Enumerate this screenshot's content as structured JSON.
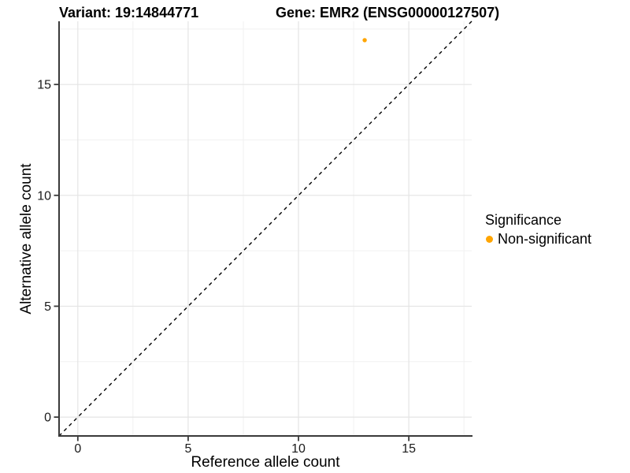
{
  "titles": {
    "variant": "Variant: 19:14844771",
    "gene": "Gene: EMR2 (ENSG00000127507)"
  },
  "chart_data": {
    "type": "scatter",
    "xlabel": "Reference allele count",
    "ylabel": "Alternative allele count",
    "xlim": [
      -0.85,
      17.85
    ],
    "ylim": [
      -0.85,
      17.85
    ],
    "x_major_ticks": [
      0,
      5,
      10,
      15
    ],
    "y_major_ticks": [
      0,
      5,
      10,
      15
    ],
    "x_minor_ticks": [
      2.5,
      7.5,
      12.5,
      17.5
    ],
    "y_minor_ticks": [
      2.5,
      7.5,
      12.5,
      17.5
    ],
    "grid": "major+minor",
    "identity_line": {
      "style": "dashed",
      "from": [
        -0.85,
        -0.85
      ],
      "to": [
        17.85,
        17.85
      ],
      "color": "#000000"
    },
    "points": [
      {
        "x": 13,
        "y": 17,
        "series": "Non-significant"
      }
    ],
    "series_colors": {
      "Non-significant": "#FFA500"
    },
    "legend": {
      "title": "Significance",
      "position": "right",
      "entries": [
        {
          "label": "Non-significant",
          "color": "#FFA500"
        }
      ]
    },
    "colors": {
      "grid_major": "#E4E4E4",
      "grid_minor": "#F1F1F1",
      "axis_line": "#3A3A3A",
      "tick_text": "#1A1A1A"
    }
  }
}
